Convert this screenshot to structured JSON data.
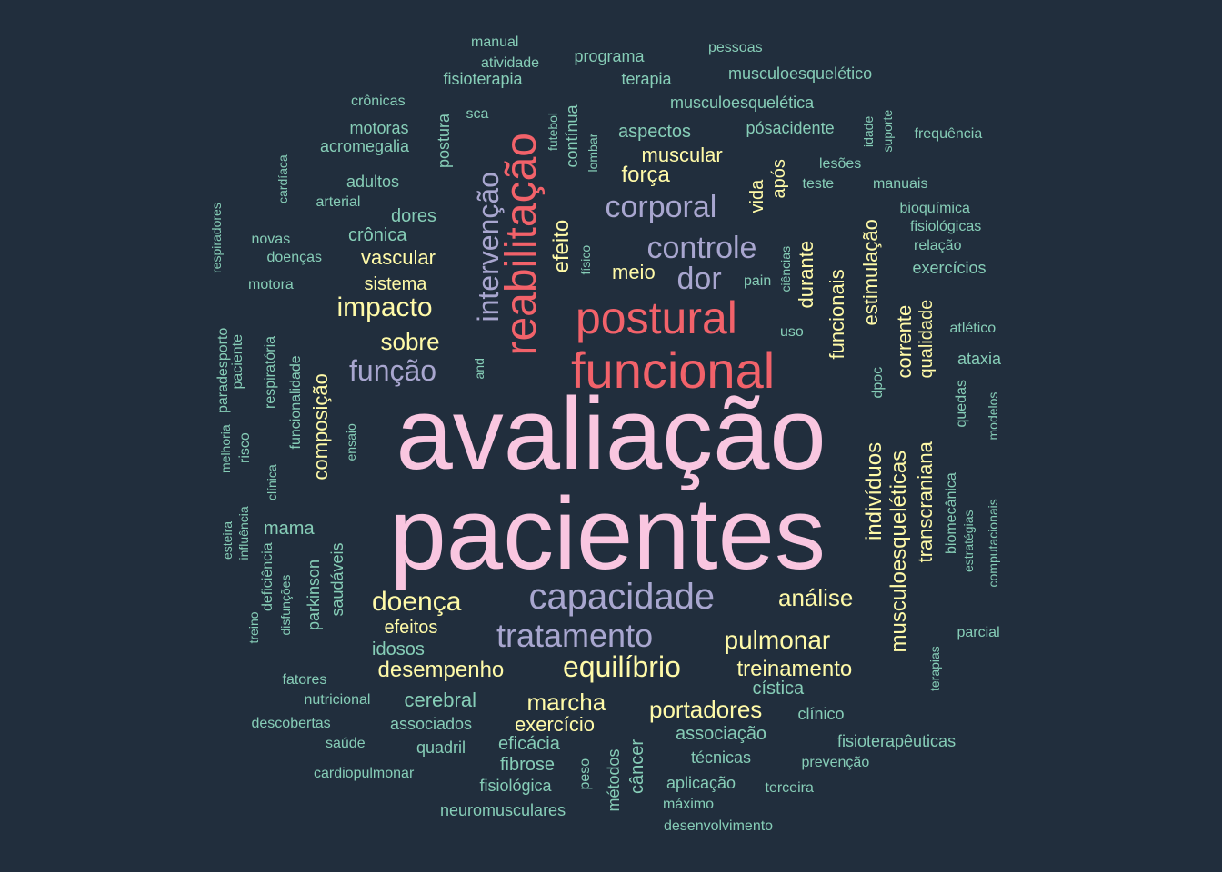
{
  "colors": {
    "background": "#212e3d",
    "tier1": "#f9c6e0",
    "tier2": "#f2626a",
    "tier3": "#a8a6cf",
    "tier4": "#fffaa8",
    "tier5": "#86cdb7"
  },
  "words": [
    {
      "text": "avaliação",
      "tier": 1,
      "vertical": false
    },
    {
      "text": "pacientes",
      "tier": 1,
      "vertical": false
    },
    {
      "text": "funcional",
      "tier": 2,
      "vertical": false
    },
    {
      "text": "postural",
      "tier": 2,
      "vertical": false
    },
    {
      "text": "reabilitação",
      "tier": 2,
      "vertical": true
    },
    {
      "text": "capacidade",
      "tier": 3,
      "vertical": false
    },
    {
      "text": "tratamento",
      "tier": 3,
      "vertical": false
    },
    {
      "text": "controle",
      "tier": 3,
      "vertical": false
    },
    {
      "text": "corporal",
      "tier": 3,
      "vertical": false
    },
    {
      "text": "dor",
      "tier": 3,
      "vertical": false
    },
    {
      "text": "função",
      "tier": 3,
      "vertical": false
    },
    {
      "text": "intervenção",
      "tier": 3,
      "vertical": true
    },
    {
      "text": "equilíbrio",
      "tier": 4,
      "vertical": false
    },
    {
      "text": "impacto",
      "tier": 4,
      "vertical": false
    },
    {
      "text": "doença",
      "tier": 4,
      "vertical": false
    },
    {
      "text": "pulmonar",
      "tier": 4,
      "vertical": false
    },
    {
      "text": "marcha",
      "tier": 4,
      "vertical": false
    },
    {
      "text": "portadores",
      "tier": 4,
      "vertical": false
    },
    {
      "text": "análise",
      "tier": 4,
      "vertical": false
    },
    {
      "text": "sobre",
      "tier": 4,
      "vertical": false
    },
    {
      "text": "força",
      "tier": 4,
      "vertical": false
    },
    {
      "text": "desempenho",
      "tier": 4,
      "vertical": false
    },
    {
      "text": "treinamento",
      "tier": 4,
      "vertical": false
    },
    {
      "text": "vascular",
      "tier": 4,
      "vertical": false
    },
    {
      "text": "meio",
      "tier": 4,
      "vertical": false
    },
    {
      "text": "efeito",
      "tier": 4,
      "vertical": true
    },
    {
      "text": "indivíduos",
      "tier": 4,
      "vertical": true
    },
    {
      "text": "musculoesqueléticas",
      "tier": 4,
      "vertical": true
    },
    {
      "text": "transcraniana",
      "tier": 4,
      "vertical": true
    },
    {
      "text": "funcionais",
      "tier": 4,
      "vertical": true
    },
    {
      "text": "estimulação",
      "tier": 4,
      "vertical": true
    },
    {
      "text": "durante",
      "tier": 4,
      "vertical": true
    },
    {
      "text": "corrente",
      "tier": 4,
      "vertical": true
    },
    {
      "text": "qualidade",
      "tier": 4,
      "vertical": true
    },
    {
      "text": "composição",
      "tier": 4,
      "vertical": true
    },
    {
      "text": "exercício",
      "tier": 4,
      "vertical": false
    },
    {
      "text": "efeitos",
      "tier": 4,
      "vertical": false
    },
    {
      "text": "sistema",
      "tier": 4,
      "vertical": false
    },
    {
      "text": "muscular",
      "tier": 4,
      "vertical": false
    },
    {
      "text": "vida",
      "tier": 4,
      "vertical": true
    },
    {
      "text": "após",
      "tier": 4,
      "vertical": true
    },
    {
      "text": "cerebral",
      "tier": 5,
      "vertical": false
    },
    {
      "text": "idosos",
      "tier": 5,
      "vertical": false
    },
    {
      "text": "mama",
      "tier": 5,
      "vertical": false
    },
    {
      "text": "associados",
      "tier": 5,
      "vertical": false
    },
    {
      "text": "eficácia",
      "tier": 5,
      "vertical": false
    },
    {
      "text": "quadril",
      "tier": 5,
      "vertical": false
    },
    {
      "text": "fibrose",
      "tier": 5,
      "vertical": false
    },
    {
      "text": "fisiológica",
      "tier": 5,
      "vertical": false
    },
    {
      "text": "neuromusculares",
      "tier": 5,
      "vertical": false
    },
    {
      "text": "associação",
      "tier": 5,
      "vertical": false
    },
    {
      "text": "técnicas",
      "tier": 5,
      "vertical": false
    },
    {
      "text": "aplicação",
      "tier": 5,
      "vertical": false
    },
    {
      "text": "máximo",
      "tier": 5,
      "vertical": false
    },
    {
      "text": "desenvolvimento",
      "tier": 5,
      "vertical": false
    },
    {
      "text": "cística",
      "tier": 5,
      "vertical": false
    },
    {
      "text": "clínico",
      "tier": 5,
      "vertical": false
    },
    {
      "text": "prevenção",
      "tier": 5,
      "vertical": false
    },
    {
      "text": "terceira",
      "tier": 5,
      "vertical": false
    },
    {
      "text": "fisioterapêuticas",
      "tier": 5,
      "vertical": false
    },
    {
      "text": "parcial",
      "tier": 5,
      "vertical": false
    },
    {
      "text": "ataxia",
      "tier": 5,
      "vertical": false
    },
    {
      "text": "atlético",
      "tier": 5,
      "vertical": false
    },
    {
      "text": "exercícios",
      "tier": 5,
      "vertical": false
    },
    {
      "text": "relação",
      "tier": 5,
      "vertical": false
    },
    {
      "text": "fisiológicas",
      "tier": 5,
      "vertical": false
    },
    {
      "text": "bioquímica",
      "tier": 5,
      "vertical": false
    },
    {
      "text": "manuais",
      "tier": 5,
      "vertical": false
    },
    {
      "text": "frequência",
      "tier": 5,
      "vertical": false
    },
    {
      "text": "teste",
      "tier": 5,
      "vertical": false
    },
    {
      "text": "lesões",
      "tier": 5,
      "vertical": false
    },
    {
      "text": "pósacidente",
      "tier": 5,
      "vertical": false
    },
    {
      "text": "aspectos",
      "tier": 5,
      "vertical": false
    },
    {
      "text": "musculoesquelética",
      "tier": 5,
      "vertical": false
    },
    {
      "text": "musculoesquelético",
      "tier": 5,
      "vertical": false
    },
    {
      "text": "pessoas",
      "tier": 5,
      "vertical": false
    },
    {
      "text": "terapia",
      "tier": 5,
      "vertical": false
    },
    {
      "text": "programa",
      "tier": 5,
      "vertical": false
    },
    {
      "text": "atividade",
      "tier": 5,
      "vertical": false
    },
    {
      "text": "manual",
      "tier": 5,
      "vertical": false
    },
    {
      "text": "fisioterapia",
      "tier": 5,
      "vertical": false
    },
    {
      "text": "crônicas",
      "tier": 5,
      "vertical": false
    },
    {
      "text": "motoras",
      "tier": 5,
      "vertical": false
    },
    {
      "text": "acromegalia",
      "tier": 5,
      "vertical": false
    },
    {
      "text": "adultos",
      "tier": 5,
      "vertical": false
    },
    {
      "text": "arterial",
      "tier": 5,
      "vertical": false
    },
    {
      "text": "dores",
      "tier": 5,
      "vertical": false
    },
    {
      "text": "crônica",
      "tier": 5,
      "vertical": false
    },
    {
      "text": "novas",
      "tier": 5,
      "vertical": false
    },
    {
      "text": "doenças",
      "tier": 5,
      "vertical": false
    },
    {
      "text": "motora",
      "tier": 5,
      "vertical": false
    },
    {
      "text": "uso",
      "tier": 5,
      "vertical": false
    },
    {
      "text": "pain",
      "tier": 5,
      "vertical": false
    },
    {
      "text": "fatores",
      "tier": 5,
      "vertical": false
    },
    {
      "text": "nutricional",
      "tier": 5,
      "vertical": false
    },
    {
      "text": "descobertas",
      "tier": 5,
      "vertical": false
    },
    {
      "text": "saúde",
      "tier": 5,
      "vertical": false
    },
    {
      "text": "cardiopulmonar",
      "tier": 5,
      "vertical": false
    },
    {
      "text": "postura",
      "tier": 5,
      "vertical": true
    },
    {
      "text": "sca",
      "tier": 5,
      "vertical": false
    },
    {
      "text": "futebol",
      "tier": 5,
      "vertical": true
    },
    {
      "text": "contínua",
      "tier": 5,
      "vertical": true
    },
    {
      "text": "lombar",
      "tier": 5,
      "vertical": true
    },
    {
      "text": "físico",
      "tier": 5,
      "vertical": true
    },
    {
      "text": "ciências",
      "tier": 5,
      "vertical": true
    },
    {
      "text": "idade",
      "tier": 5,
      "vertical": true
    },
    {
      "text": "suporte",
      "tier": 5,
      "vertical": true
    },
    {
      "text": "cardíaca",
      "tier": 5,
      "vertical": true
    },
    {
      "text": "respiradores",
      "tier": 5,
      "vertical": true
    },
    {
      "text": "paradesporto",
      "tier": 5,
      "vertical": true
    },
    {
      "text": "paciente",
      "tier": 5,
      "vertical": true
    },
    {
      "text": "melhoria",
      "tier": 5,
      "vertical": true
    },
    {
      "text": "esteira",
      "tier": 5,
      "vertical": true
    },
    {
      "text": "influência",
      "tier": 5,
      "vertical": true
    },
    {
      "text": "risco",
      "tier": 5,
      "vertical": true
    },
    {
      "text": "clínica",
      "tier": 5,
      "vertical": true
    },
    {
      "text": "respiratória",
      "tier": 5,
      "vertical": true
    },
    {
      "text": "funcionalidade",
      "tier": 5,
      "vertical": true
    },
    {
      "text": "ensaio",
      "tier": 5,
      "vertical": true
    },
    {
      "text": "and",
      "tier": 5,
      "vertical": true
    },
    {
      "text": "deficiência",
      "tier": 5,
      "vertical": true
    },
    {
      "text": "disfunções",
      "tier": 5,
      "vertical": true
    },
    {
      "text": "treino",
      "tier": 5,
      "vertical": true
    },
    {
      "text": "parkinson",
      "tier": 5,
      "vertical": true
    },
    {
      "text": "saudáveis",
      "tier": 5,
      "vertical": true
    },
    {
      "text": "dpoc",
      "tier": 5,
      "vertical": true
    },
    {
      "text": "quedas",
      "tier": 5,
      "vertical": true
    },
    {
      "text": "modelos",
      "tier": 5,
      "vertical": true
    },
    {
      "text": "biomecânica",
      "tier": 5,
      "vertical": true
    },
    {
      "text": "estratégias",
      "tier": 5,
      "vertical": true
    },
    {
      "text": "computacionais",
      "tier": 5,
      "vertical": true
    },
    {
      "text": "terapias",
      "tier": 5,
      "vertical": true
    },
    {
      "text": "peso",
      "tier": 5,
      "vertical": true
    },
    {
      "text": "métodos",
      "tier": 5,
      "vertical": true
    },
    {
      "text": "câncer",
      "tier": 5,
      "vertical": true
    }
  ]
}
